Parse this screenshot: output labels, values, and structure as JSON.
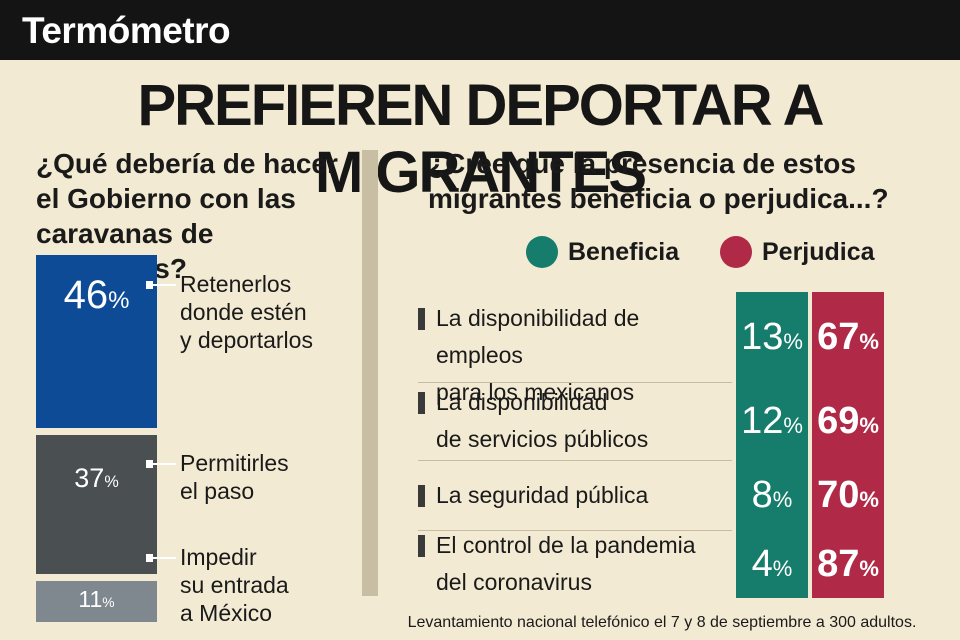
{
  "section_label": "Termómetro",
  "headline": "PREFIEREN DEPORTAR A MIGRANTES",
  "colors": {
    "bar_1": "#0e4b97",
    "bar_2": "#4a4f52",
    "bar_3": "#7f888f",
    "beneficia": "#167d6c",
    "perjudica": "#b02a47"
  },
  "left_question": [
    "¿Qué debería de hacer",
    "el Gobierno con las",
    "caravanas de migrantes?"
  ],
  "right_question": [
    "¿Cree que la presencia de estos",
    "migrantes beneficia o perjudica...?"
  ],
  "source_note": "Levantamiento nacional telefónico el 7 y 8 de septiembre a 300 adultos.",
  "chart_data": [
    {
      "type": "bar",
      "title": "¿Qué debería de hacer el Gobierno con las caravanas de migrantes?",
      "categories": [
        [
          "Retenerlos",
          "donde estén",
          "y deportarlos"
        ],
        [
          "Permitirles",
          "el paso"
        ],
        [
          "Impedir",
          "su entrada",
          "a México"
        ]
      ],
      "values": [
        46,
        37,
        11
      ],
      "unit": "%"
    },
    {
      "type": "table",
      "title": "¿Cree que la presencia de estos migrantes beneficia o perjudica...?",
      "series": [
        {
          "name": "Beneficia",
          "values": [
            13,
            12,
            8,
            4
          ]
        },
        {
          "name": "Perjudica",
          "values": [
            67,
            69,
            70,
            87
          ]
        }
      ],
      "categories": [
        [
          "La disponibilidad de empleos",
          "para los mexicanos"
        ],
        [
          "La disponibilidad",
          "de servicios públicos"
        ],
        [
          "La seguridad pública"
        ],
        [
          "El control de la pandemia",
          "del coronavirus"
        ]
      ],
      "unit": "%"
    }
  ]
}
